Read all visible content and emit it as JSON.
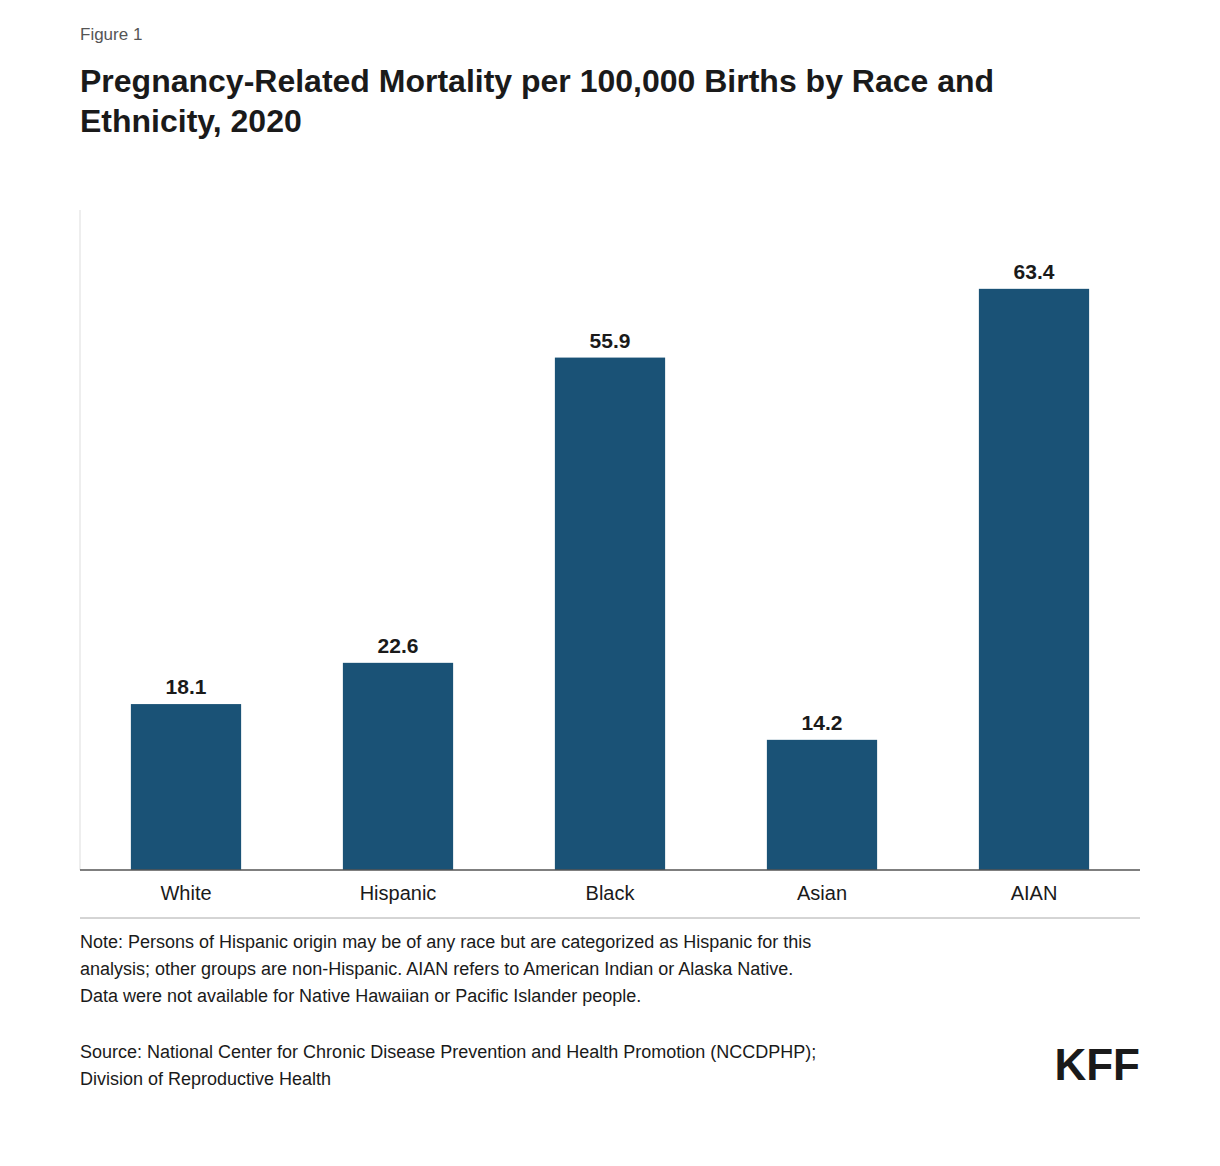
{
  "chart_data": {
    "type": "bar",
    "title": "Pregnancy-Related Mortality per 100,000 Births by Race and Ethnicity, 2020",
    "annotations": [
      "Figure 1",
      "Note: Persons of Hispanic origin may be of any race but are categorized as Hispanic for this\nanalysis; other groups are non-Hispanic. AIAN refers to American Indian or Alaska Native.\nData were not available for Native Hawaiian or Pacific Islander people.",
      "Source: National Center for Chronic Disease Prevention and Health Promotion (NCCDPHP);\nDivision of Reproductive Health",
      "KFF"
    ],
    "categories": [
      "White",
      "Hispanic",
      "Black",
      "Asian",
      "AIAN"
    ],
    "values": [
      18.1,
      22.6,
      55.9,
      14.2,
      63.4
    ],
    "color": "#1a5276",
    "ylim": [
      0,
      72
    ],
    "grid": false,
    "data_labels": true,
    "tick_labels": "x"
  }
}
